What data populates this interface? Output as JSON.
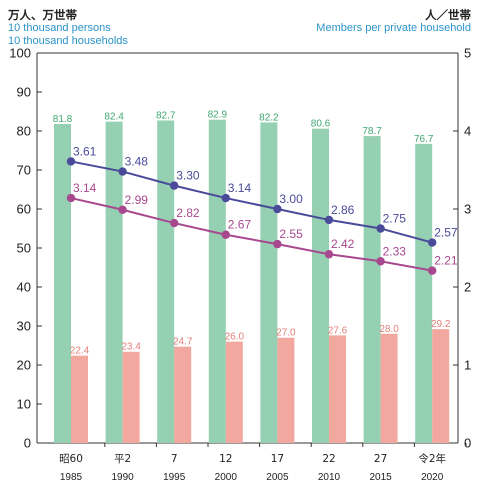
{
  "chart_data": {
    "type": "bar",
    "left_unit_jp": "万人、万世帯",
    "left_unit_en_1": "10 thousand persons",
    "left_unit_en_2": "10 thousand households",
    "right_unit_jp": "人／世帯",
    "right_unit_en": "Members per private household",
    "categories": [
      "昭60",
      "平2",
      "7",
      "12",
      "17",
      "22",
      "27",
      "令2年"
    ],
    "years": [
      "1985",
      "1990",
      "1995",
      "2000",
      "2005",
      "2010",
      "2015",
      "2020"
    ],
    "left_ylim": [
      0,
      100
    ],
    "left_ticks": [
      "0",
      "10",
      "20",
      "30",
      "40",
      "50",
      "60",
      "70",
      "80",
      "90",
      "100"
    ],
    "right_ylim": [
      0,
      5
    ],
    "right_ticks": [
      "0",
      "1",
      "2",
      "3",
      "4",
      "5"
    ],
    "series": [
      {
        "kind": "bar",
        "axis": "left",
        "color": "#96d0b2",
        "label_color": "#3fa870",
        "values": [
          81.8,
          82.4,
          82.7,
          82.9,
          82.2,
          80.6,
          78.7,
          76.7
        ],
        "labels": [
          "81.8",
          "82.4",
          "82.7",
          "82.9",
          "82.2",
          "80.6",
          "78.7",
          "76.7"
        ]
      },
      {
        "kind": "bar",
        "axis": "left",
        "color": "#f2a89e",
        "label_color": "#e4807a",
        "values": [
          22.4,
          23.4,
          24.7,
          26.0,
          27.0,
          27.6,
          28.0,
          29.2
        ],
        "labels": [
          "22.4",
          "23.4",
          "24.7",
          "26.0",
          "27.0",
          "27.6",
          "28.0",
          "29.2"
        ]
      },
      {
        "kind": "line",
        "axis": "right",
        "color": "#4a4a9a",
        "values": [
          3.61,
          3.48,
          3.3,
          3.14,
          3.0,
          2.86,
          2.75,
          2.57
        ],
        "labels": [
          "3.61",
          "3.48",
          "3.30",
          "3.14",
          "3.00",
          "2.86",
          "2.75",
          "2.57"
        ]
      },
      {
        "kind": "line",
        "axis": "right",
        "color": "#a8488f",
        "values": [
          3.14,
          2.99,
          2.82,
          2.67,
          2.55,
          2.42,
          2.33,
          2.21
        ],
        "labels": [
          "3.14",
          "2.99",
          "2.82",
          "2.67",
          "2.55",
          "2.42",
          "2.33",
          "2.21"
        ]
      }
    ]
  }
}
